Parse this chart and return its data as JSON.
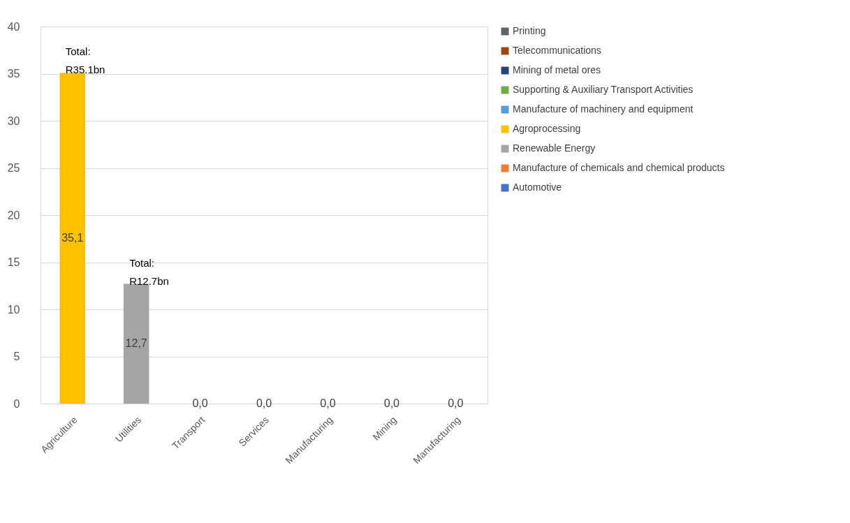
{
  "chart_data": {
    "type": "bar",
    "stacked": true,
    "categories": [
      "Agriculture",
      "Utilities",
      "Transport",
      "Services",
      "Manufacturing",
      "Mining",
      "Manufacturing"
    ],
    "series": [
      {
        "name": "Automotive",
        "color": "#4472c4",
        "values": [
          0,
          0,
          0,
          0,
          0,
          0,
          0
        ]
      },
      {
        "name": "Manufacture of chemicals and chemical products",
        "color": "#ed7d31",
        "values": [
          0,
          0,
          0,
          0,
          0,
          0,
          0
        ]
      },
      {
        "name": "Renewable Energy",
        "color": "#a5a5a5",
        "values": [
          0,
          12.7,
          0,
          0,
          0,
          0,
          0
        ],
        "value_labels": [
          null,
          "12,7",
          null,
          null,
          null,
          null,
          null
        ]
      },
      {
        "name": "Agroprocessing",
        "color": "#ffc000",
        "values": [
          35.1,
          0,
          0,
          0,
          0,
          0,
          0
        ],
        "value_labels": [
          "35,1",
          null,
          null,
          null,
          null,
          null,
          null
        ]
      },
      {
        "name": "Manufacture of machinery and equipment",
        "color": "#5b9bd5",
        "values": [
          0,
          0,
          0,
          0,
          0,
          0,
          0
        ],
        "value_labels": [
          null,
          null,
          null,
          null,
          "0,0",
          null,
          null
        ]
      },
      {
        "name": "Supporting & Auxiliary Transport Activities",
        "color": "#70ad47",
        "values": [
          0,
          0,
          0,
          0,
          0,
          0,
          0
        ],
        "value_labels": [
          null,
          null,
          "0,0",
          null,
          null,
          null,
          null
        ]
      },
      {
        "name": "Mining of metal ores",
        "color": "#264478",
        "values": [
          0,
          0,
          0,
          0,
          0,
          0,
          0
        ],
        "value_labels": [
          null,
          null,
          null,
          null,
          null,
          "0,0",
          null
        ]
      },
      {
        "name": "Telecommunications",
        "color": "#9e480e",
        "values": [
          0,
          0,
          0,
          0,
          0,
          0,
          0
        ],
        "value_labels": [
          null,
          null,
          null,
          "0,0",
          null,
          null,
          null
        ]
      },
      {
        "name": "Printing",
        "color": "#636363",
        "values": [
          0,
          0,
          0,
          0,
          0,
          0,
          0
        ],
        "value_labels": [
          null,
          null,
          null,
          null,
          null,
          null,
          "0,0"
        ]
      }
    ],
    "totals": [
      "Total: R35.1bn",
      "Total: R12.7bn",
      null,
      null,
      null,
      null,
      null
    ],
    "ylim": [
      0,
      40
    ],
    "yticks": [
      0,
      5,
      10,
      15,
      20,
      25,
      30,
      35,
      40
    ],
    "grid": "y",
    "legend": "right"
  }
}
